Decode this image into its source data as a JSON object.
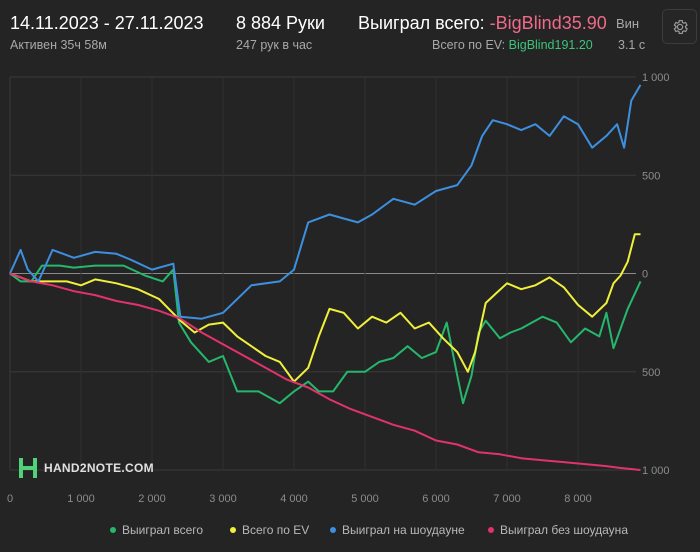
{
  "header": {
    "date_range": "14.11.2023 - 27.11.2023",
    "active": "Активен 35ч 58м",
    "hands": "8 884 Руки",
    "hands_rate": "247 рук в час",
    "won_total_label": "Выиграл всего:",
    "won_total_value": "-BigBlind35.90",
    "ev_label": "Всего по EV:",
    "ev_value": "BigBlind191.20",
    "cut_label": "Вин",
    "cut_value": "3.1 с"
  },
  "logo": {
    "text": "HAND2NOTE.COM",
    "icon": "hand2note-logo-icon"
  },
  "settings_icon": "gear-icon",
  "colors": {
    "background": "#242424",
    "won_total": "#25b86c",
    "ev": "#f0f03a",
    "showdown": "#3d8fe0",
    "non_showdown": "#e2326e",
    "negative_value": "#f06a8a",
    "ev_value": "#3cc47a"
  },
  "chart_data": {
    "type": "line",
    "x_ticks": [
      "0",
      "1 000",
      "2 000",
      "3 000",
      "4 000",
      "5 000",
      "6 000",
      "7 000",
      "8 000"
    ],
    "y_ticks": [
      "1 000",
      "500",
      "0",
      "500",
      "1 000"
    ],
    "xlim": [
      0,
      8884
    ],
    "ylim": [
      -1000,
      1000
    ],
    "legend_position": "bottom",
    "series": [
      {
        "name": "Выиграл всего",
        "color": "#25b86c",
        "points": [
          [
            0,
            0
          ],
          [
            150,
            -40
          ],
          [
            300,
            -40
          ],
          [
            450,
            40
          ],
          [
            700,
            40
          ],
          [
            900,
            30
          ],
          [
            1200,
            40
          ],
          [
            1600,
            40
          ],
          [
            1900,
            -10
          ],
          [
            2150,
            -40
          ],
          [
            2300,
            20
          ],
          [
            2380,
            -250
          ],
          [
            2550,
            -350
          ],
          [
            2800,
            -450
          ],
          [
            3000,
            -420
          ],
          [
            3200,
            -600
          ],
          [
            3500,
            -600
          ],
          [
            3800,
            -660
          ],
          [
            4000,
            -600
          ],
          [
            4200,
            -550
          ],
          [
            4350,
            -600
          ],
          [
            4550,
            -600
          ],
          [
            4750,
            -500
          ],
          [
            5000,
            -500
          ],
          [
            5200,
            -450
          ],
          [
            5400,
            -430
          ],
          [
            5600,
            -370
          ],
          [
            5800,
            -430
          ],
          [
            6000,
            -400
          ],
          [
            6150,
            -250
          ],
          [
            6300,
            -520
          ],
          [
            6380,
            -660
          ],
          [
            6500,
            -520
          ],
          [
            6600,
            -300
          ],
          [
            6700,
            -240
          ],
          [
            6900,
            -330
          ],
          [
            7050,
            -300
          ],
          [
            7200,
            -280
          ],
          [
            7500,
            -220
          ],
          [
            7700,
            -250
          ],
          [
            7900,
            -350
          ],
          [
            8100,
            -280
          ],
          [
            8300,
            -320
          ],
          [
            8400,
            -200
          ],
          [
            8500,
            -380
          ],
          [
            8700,
            -180
          ],
          [
            8880,
            -40
          ]
        ]
      },
      {
        "name": "Всего по EV",
        "color": "#f0f03a",
        "points": [
          [
            0,
            0
          ],
          [
            150,
            -20
          ],
          [
            300,
            -40
          ],
          [
            500,
            -40
          ],
          [
            800,
            -40
          ],
          [
            1000,
            -60
          ],
          [
            1200,
            -30
          ],
          [
            1500,
            -50
          ],
          [
            1800,
            -80
          ],
          [
            2100,
            -130
          ],
          [
            2400,
            -240
          ],
          [
            2600,
            -300
          ],
          [
            2800,
            -260
          ],
          [
            3000,
            -250
          ],
          [
            3200,
            -320
          ],
          [
            3400,
            -370
          ],
          [
            3600,
            -420
          ],
          [
            3800,
            -450
          ],
          [
            4000,
            -550
          ],
          [
            4200,
            -480
          ],
          [
            4350,
            -320
          ],
          [
            4500,
            -180
          ],
          [
            4700,
            -200
          ],
          [
            4900,
            -280
          ],
          [
            5100,
            -220
          ],
          [
            5300,
            -250
          ],
          [
            5500,
            -200
          ],
          [
            5700,
            -280
          ],
          [
            5900,
            -250
          ],
          [
            6100,
            -330
          ],
          [
            6300,
            -400
          ],
          [
            6450,
            -500
          ],
          [
            6550,
            -400
          ],
          [
            6700,
            -150
          ],
          [
            6850,
            -100
          ],
          [
            7000,
            -50
          ],
          [
            7200,
            -80
          ],
          [
            7400,
            -60
          ],
          [
            7600,
            -20
          ],
          [
            7800,
            -70
          ],
          [
            8000,
            -160
          ],
          [
            8200,
            -220
          ],
          [
            8400,
            -150
          ],
          [
            8500,
            -50
          ],
          [
            8600,
            -10
          ],
          [
            8700,
            60
          ],
          [
            8800,
            200
          ],
          [
            8880,
            200
          ]
        ]
      },
      {
        "name": "Выиграл на шоудауне",
        "color": "#3d8fe0",
        "points": [
          [
            0,
            0
          ],
          [
            150,
            120
          ],
          [
            250,
            20
          ],
          [
            400,
            -40
          ],
          [
            600,
            120
          ],
          [
            900,
            80
          ],
          [
            1200,
            110
          ],
          [
            1500,
            100
          ],
          [
            1700,
            70
          ],
          [
            2000,
            20
          ],
          [
            2300,
            50
          ],
          [
            2400,
            -220
          ],
          [
            2700,
            -230
          ],
          [
            3000,
            -200
          ],
          [
            3400,
            -60
          ],
          [
            3800,
            -40
          ],
          [
            4000,
            20
          ],
          [
            4200,
            260
          ],
          [
            4500,
            300
          ],
          [
            4700,
            280
          ],
          [
            4900,
            260
          ],
          [
            5100,
            300
          ],
          [
            5400,
            380
          ],
          [
            5700,
            350
          ],
          [
            6000,
            420
          ],
          [
            6300,
            450
          ],
          [
            6500,
            550
          ],
          [
            6650,
            700
          ],
          [
            6800,
            780
          ],
          [
            7000,
            760
          ],
          [
            7200,
            730
          ],
          [
            7400,
            760
          ],
          [
            7600,
            700
          ],
          [
            7800,
            800
          ],
          [
            8000,
            760
          ],
          [
            8200,
            640
          ],
          [
            8400,
            700
          ],
          [
            8550,
            760
          ],
          [
            8650,
            640
          ],
          [
            8750,
            880
          ],
          [
            8880,
            960
          ]
        ]
      },
      {
        "name": "Выиграл без шоудауна",
        "color": "#e2326e",
        "points": [
          [
            0,
            0
          ],
          [
            300,
            -40
          ],
          [
            600,
            -60
          ],
          [
            900,
            -90
          ],
          [
            1200,
            -110
          ],
          [
            1500,
            -140
          ],
          [
            1800,
            -160
          ],
          [
            2100,
            -190
          ],
          [
            2400,
            -230
          ],
          [
            2700,
            -300
          ],
          [
            3000,
            -360
          ],
          [
            3300,
            -420
          ],
          [
            3600,
            -480
          ],
          [
            3900,
            -540
          ],
          [
            4200,
            -580
          ],
          [
            4500,
            -640
          ],
          [
            4800,
            -690
          ],
          [
            5100,
            -730
          ],
          [
            5400,
            -770
          ],
          [
            5700,
            -800
          ],
          [
            6000,
            -850
          ],
          [
            6300,
            -870
          ],
          [
            6600,
            -910
          ],
          [
            6900,
            -920
          ],
          [
            7200,
            -940
          ],
          [
            7500,
            -950
          ],
          [
            7800,
            -960
          ],
          [
            8100,
            -970
          ],
          [
            8400,
            -980
          ],
          [
            8600,
            -990
          ],
          [
            8880,
            -1000
          ]
        ]
      }
    ]
  }
}
